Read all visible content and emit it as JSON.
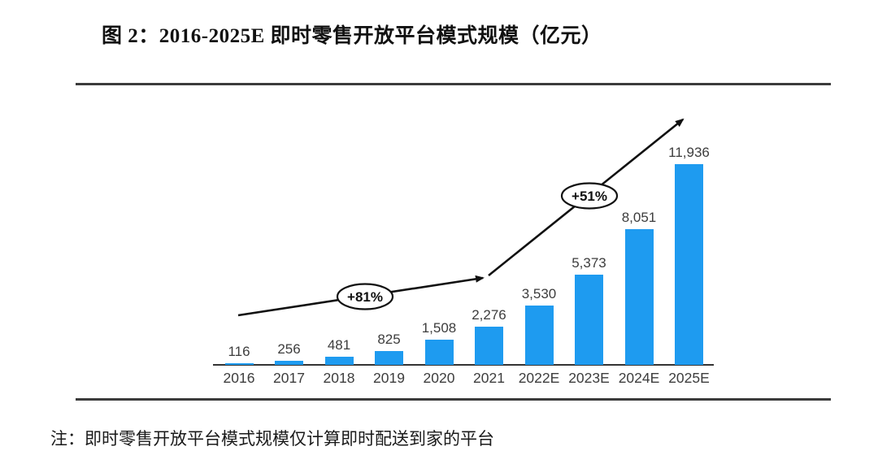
{
  "figure": {
    "title": "图 2：2016-2025E 即时零售开放平台模式规模（亿元）",
    "note": "注：即时零售开放平台模式规模仅计算即时配送到家的平台"
  },
  "chart_data": {
    "type": "bar",
    "title": "2016-2025E 即时零售开放平台模式规模（亿元）",
    "unit": "亿元",
    "categories": [
      "2016",
      "2017",
      "2018",
      "2019",
      "2020",
      "2021",
      "2022E",
      "2023E",
      "2024E",
      "2025E"
    ],
    "values": [
      116,
      256,
      481,
      825,
      1508,
      2276,
      3530,
      5373,
      8051,
      11936
    ],
    "value_labels": [
      "116",
      "256",
      "481",
      "825",
      "1,508",
      "2,276",
      "3,530",
      "5,373",
      "8,051",
      "11,936"
    ],
    "ylim": [
      0,
      12400
    ],
    "grid": false,
    "legend_position": "none",
    "bar_color": "#1E9BF0",
    "annotations": [
      {
        "label": "+81%",
        "type": "growth-rate"
      },
      {
        "label": "+51%",
        "type": "growth-rate"
      }
    ]
  }
}
